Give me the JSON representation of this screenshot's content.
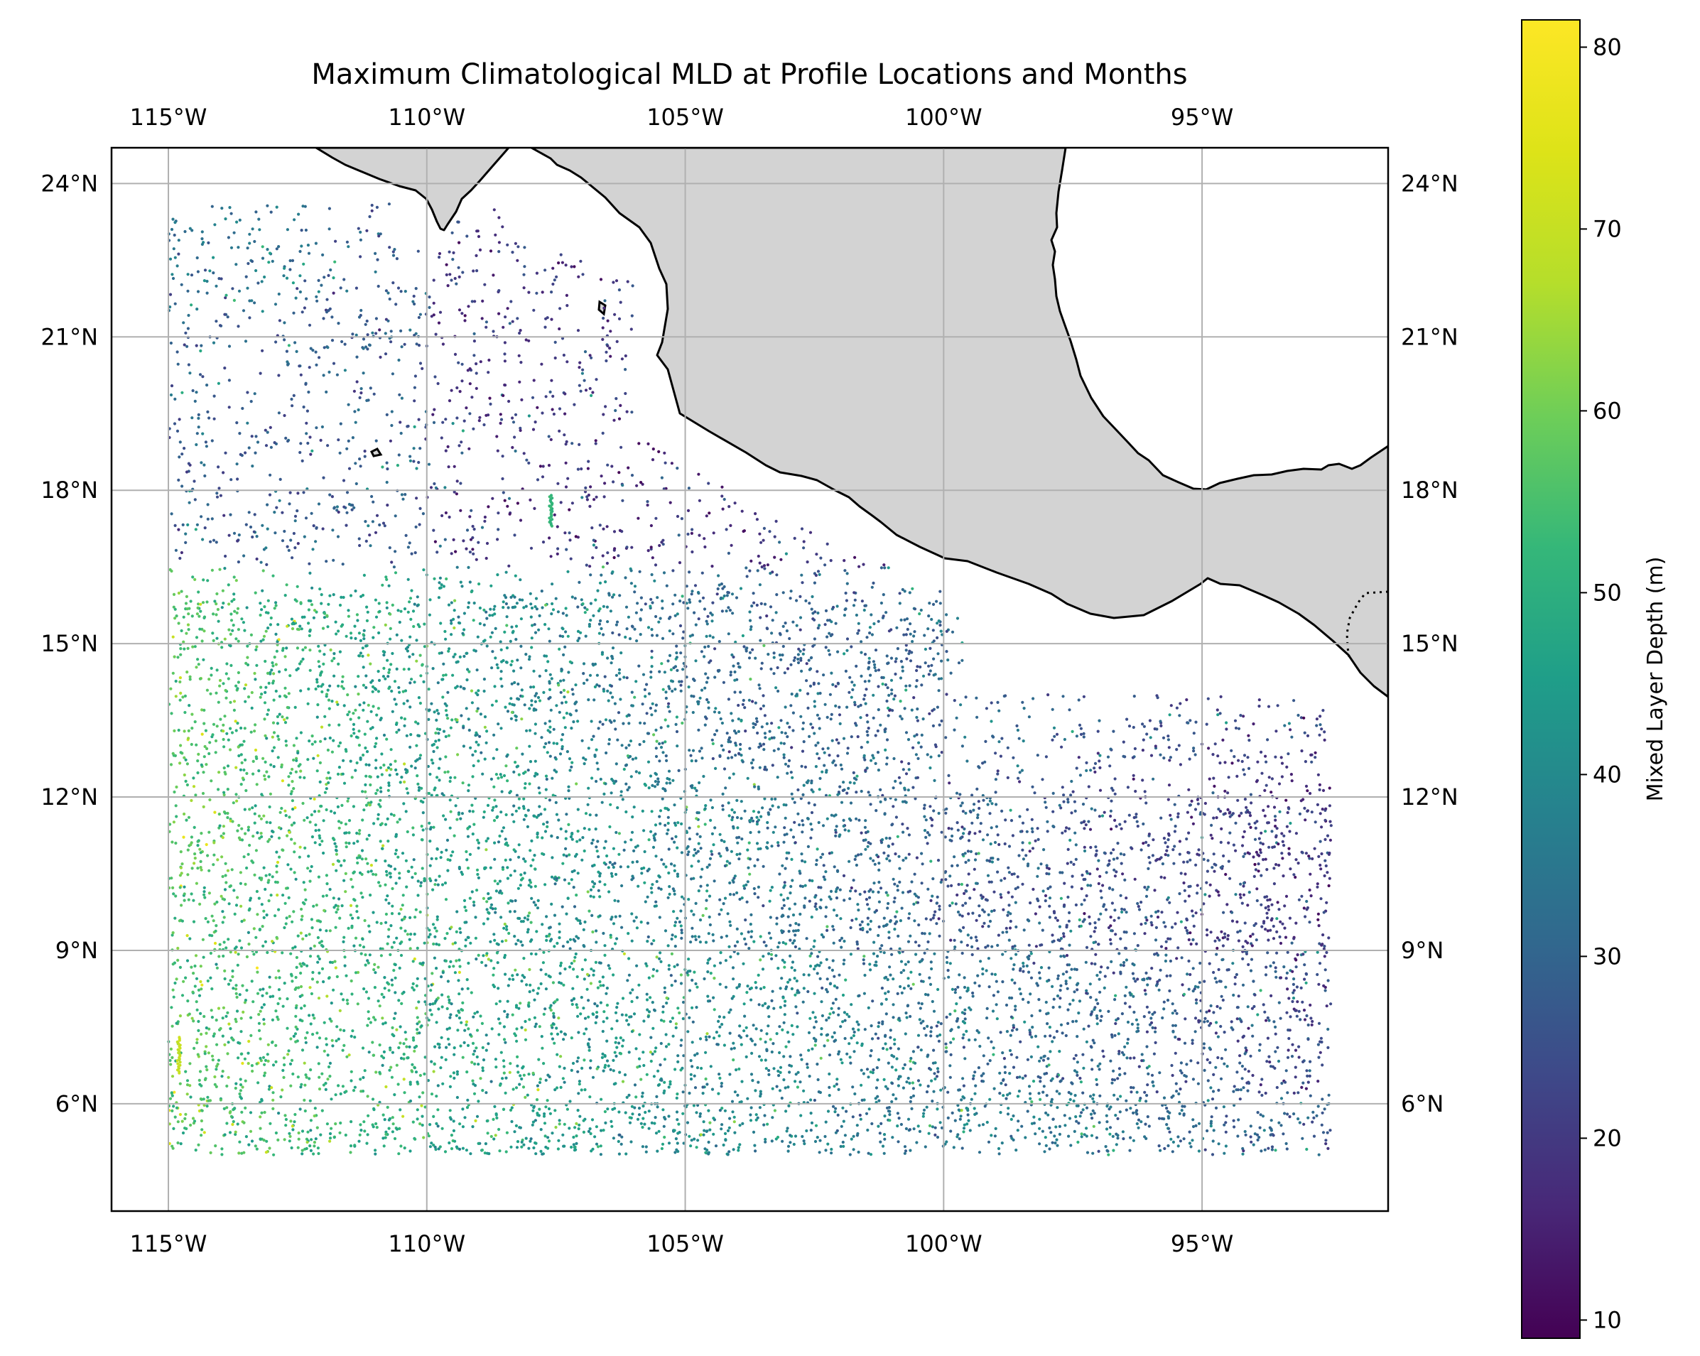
{
  "title": "Maximum Climatological MLD at Profile Locations and Months",
  "map": {
    "lon_range": [
      -116.1,
      -91.4
    ],
    "lat_range": [
      3.9,
      24.7
    ],
    "lon_ticks": [
      {
        "value": -115,
        "label": "115°W"
      },
      {
        "value": -110,
        "label": "110°W"
      },
      {
        "value": -105,
        "label": "105°W"
      },
      {
        "value": -100,
        "label": "100°W"
      },
      {
        "value": -95,
        "label": "95°W"
      }
    ],
    "lat_ticks": [
      {
        "value": 24,
        "label": "24°N"
      },
      {
        "value": 21,
        "label": "21°N"
      },
      {
        "value": 18,
        "label": "18°N"
      },
      {
        "value": 15,
        "label": "15°N"
      },
      {
        "value": 12,
        "label": "12°N"
      },
      {
        "value": 9,
        "label": "9°N"
      },
      {
        "value": 6,
        "label": "6°N"
      }
    ],
    "gridlines": true,
    "land_color": "#d3d3d3",
    "coastline_color": "#000000",
    "gridline_color": "#b0b0b0"
  },
  "colorbar": {
    "label": "Mixed Layer Depth (m)",
    "colormap": "viridis",
    "vmin": 9,
    "vmax": 81.5,
    "ticks": [
      {
        "value": 10,
        "label": "10"
      },
      {
        "value": 20,
        "label": "20"
      },
      {
        "value": 30,
        "label": "30"
      },
      {
        "value": 40,
        "label": "40"
      },
      {
        "value": 50,
        "label": "50"
      },
      {
        "value": 60,
        "label": "60"
      },
      {
        "value": 70,
        "label": "70"
      },
      {
        "value": 80,
        "label": "80"
      }
    ]
  },
  "chart_data": {
    "type": "scatter",
    "title": "Maximum Climatological MLD at Profile Locations and Months",
    "xlabel": "",
    "ylabel": "",
    "xlim": [
      -116.1,
      -91.4
    ],
    "ylim": [
      3.9,
      24.7
    ],
    "color_label": "Mixed Layer Depth (m)",
    "color_range": [
      9,
      81.5
    ],
    "grid": true,
    "regions": [
      {
        "lon": [
          -115,
          -107
        ],
        "lat": [
          5,
          9
        ],
        "mld_typical": 45
      },
      {
        "lon": [
          -115,
          -107
        ],
        "lat": [
          9,
          15
        ],
        "mld_typical": 50
      },
      {
        "lon": [
          -110,
          -104
        ],
        "lat": [
          12,
          16
        ],
        "mld_typical": 45
      },
      {
        "lon": [
          -104,
          -98
        ],
        "lat": [
          9,
          15
        ],
        "mld_typical": 32
      },
      {
        "lon": [
          -100,
          -92.5
        ],
        "lat": [
          5,
          12
        ],
        "mld_typical": 22
      },
      {
        "lon": [
          -115,
          -106
        ],
        "lat": [
          15,
          23.6
        ],
        "mld_typical": 25
      }
    ],
    "highlight_tracks": [
      {
        "lon": -107.6,
        "lat": [
          17.3,
          17.9
        ],
        "mld": 52
      },
      {
        "lon": -114.8,
        "lat": [
          6.6,
          7.3
        ],
        "mld": 70
      }
    ]
  }
}
